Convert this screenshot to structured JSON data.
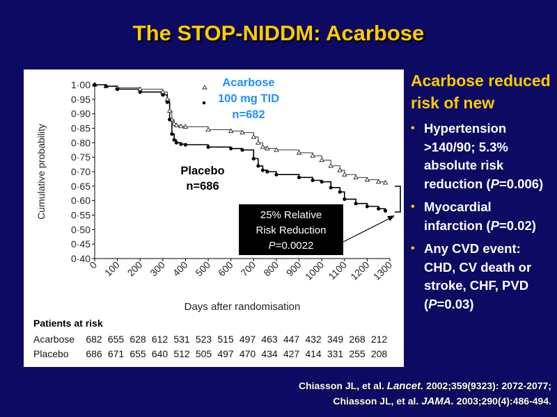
{
  "slide": {
    "title": "The STOP-NIDDM: Acarbose"
  },
  "right_panel": {
    "heading": "Acarbose reduced risk of new",
    "bullets": [
      {
        "before": "Hypertension >140/90; 5.3% absolute risk reduction (",
        "italic": "P",
        "after": "=0.006)"
      },
      {
        "before": "Myocardial infarction (",
        "italic": "P",
        "after": "=0.02)"
      },
      {
        "before": "Any CVD event: CHD, CV death or stroke, CHF, PVD (",
        "italic": "P",
        "after": "=0.03)"
      }
    ]
  },
  "citations": [
    {
      "authors": "Chiasson JL, et al. ",
      "journal": "Lancet.",
      "details": " 2002;359(9323): 2072-2077;"
    },
    {
      "authors": "Chiasson JL, et al. ",
      "journal": "JAMA.",
      "details": " 2003;290(4):486-494."
    }
  ],
  "colors": {
    "background": "#0c0a62",
    "title": "#ffcc00",
    "acarbose_label": "#1e90ff",
    "text": "#ffffff"
  },
  "chart_data": {
    "type": "line",
    "xlabel": "Days after randomisation",
    "ylabel": "Cumulative probability",
    "xlim": [
      0,
      1300
    ],
    "ylim": [
      0.4,
      1.0
    ],
    "x_ticks": [
      0,
      100,
      200,
      300,
      400,
      500,
      600,
      700,
      800,
      900,
      1000,
      1100,
      1200,
      1300
    ],
    "y_ticks": [
      1.0,
      0.95,
      0.9,
      0.85,
      0.8,
      0.75,
      0.7,
      0.65,
      0.6,
      0.55,
      0.5,
      0.45,
      0.4
    ],
    "y_tick_labels": [
      "1·00",
      "0·95",
      "0·90",
      "0·85",
      "0·80",
      "0·75",
      "0·70",
      "0·65",
      "0·60",
      "0·55",
      "0·50",
      "0·45",
      "0·40"
    ],
    "legend": {
      "acarbose_lines": [
        "Acarbose",
        "100 mg TID",
        "n=682"
      ],
      "placebo_lines": [
        "Placebo",
        "n=686"
      ]
    },
    "series": [
      {
        "name": "Acarbose",
        "marker": "open-triangle",
        "x": [
          0,
          50,
          100,
          200,
          300,
          320,
          330,
          340,
          350,
          360,
          380,
          400,
          500,
          600,
          650,
          700,
          720,
          740,
          760,
          800,
          900,
          960,
          1000,
          1040,
          1080,
          1100,
          1150,
          1200,
          1250,
          1280
        ],
        "y": [
          1.0,
          0.995,
          0.99,
          0.985,
          0.975,
          0.95,
          0.91,
          0.88,
          0.865,
          0.86,
          0.857,
          0.855,
          0.845,
          0.84,
          0.835,
          0.82,
          0.8,
          0.785,
          0.78,
          0.775,
          0.765,
          0.755,
          0.74,
          0.72,
          0.705,
          0.69,
          0.68,
          0.672,
          0.665,
          0.662
        ]
      },
      {
        "name": "Placebo",
        "marker": "filled-circle",
        "x": [
          0,
          50,
          100,
          200,
          300,
          320,
          330,
          340,
          350,
          360,
          380,
          400,
          500,
          600,
          650,
          700,
          720,
          740,
          760,
          800,
          900,
          960,
          1000,
          1040,
          1080,
          1100,
          1150,
          1200,
          1250,
          1280
        ],
        "y": [
          1.0,
          0.995,
          0.985,
          0.975,
          0.965,
          0.94,
          0.88,
          0.83,
          0.81,
          0.8,
          0.795,
          0.793,
          0.785,
          0.78,
          0.775,
          0.745,
          0.72,
          0.705,
          0.7,
          0.69,
          0.68,
          0.67,
          0.665,
          0.645,
          0.63,
          0.605,
          0.59,
          0.58,
          0.572,
          0.565
        ]
      }
    ],
    "annotation": {
      "lines": [
        "25% Relative",
        "Risk Reduction"
      ],
      "p_italic": "P",
      "p_value": "=0.0022"
    },
    "risk_table": {
      "header": "Patients at risk",
      "rows": [
        {
          "label": "Acarbose",
          "values": [
            682,
            655,
            628,
            612,
            531,
            523,
            515,
            497,
            463,
            447,
            432,
            349,
            268,
            212
          ]
        },
        {
          "label": "Placebo",
          "values": [
            686,
            671,
            655,
            640,
            512,
            505,
            497,
            470,
            434,
            427,
            414,
            331,
            255,
            208
          ]
        }
      ]
    }
  }
}
